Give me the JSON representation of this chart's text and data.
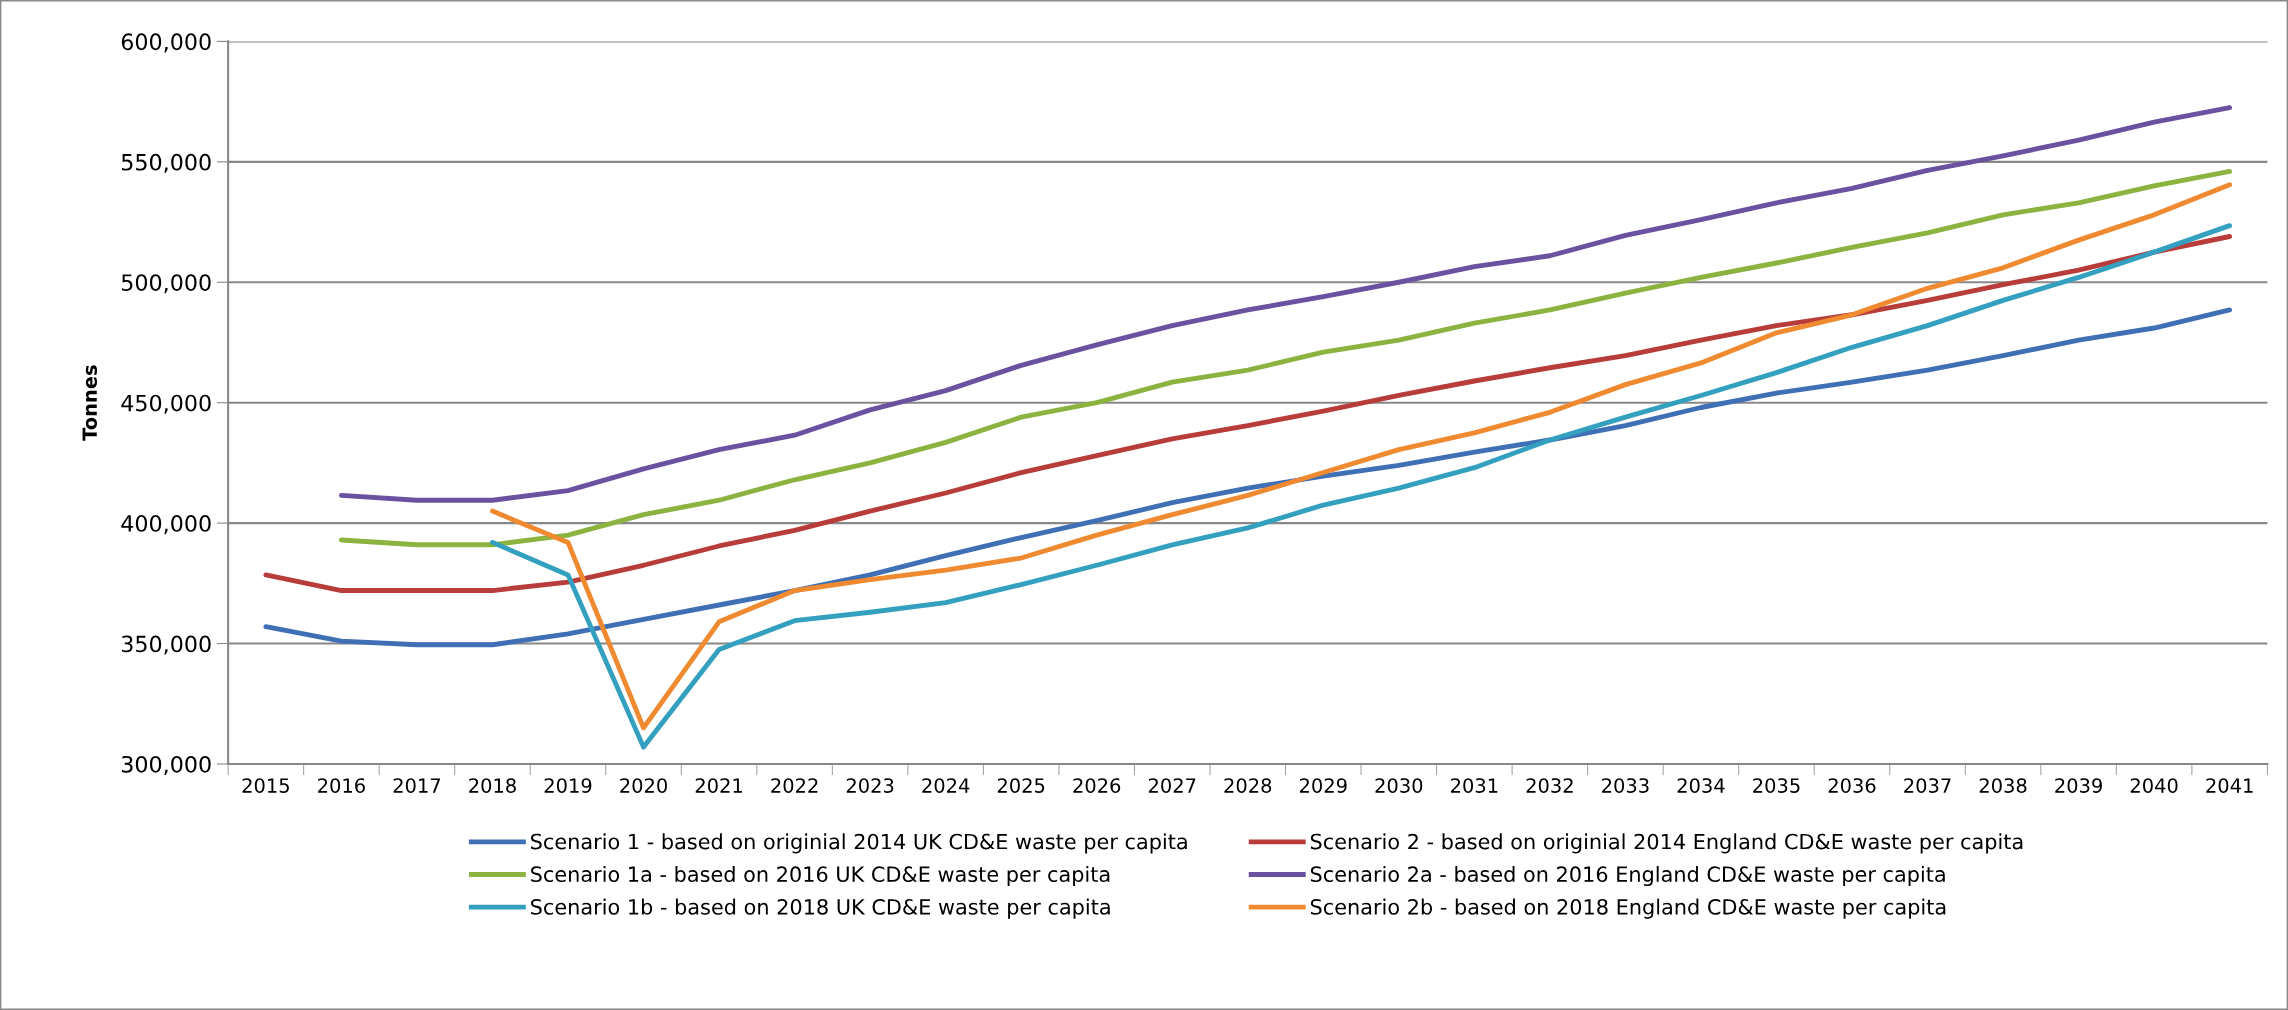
{
  "chart_data": {
    "type": "line",
    "ylabel": "Tonnes",
    "categories": [
      "2015",
      "2016",
      "2017",
      "2018",
      "2019",
      "2020",
      "2021",
      "2022",
      "2023",
      "2024",
      "2025",
      "2026",
      "2027",
      "2028",
      "2029",
      "2030",
      "2031",
      "2032",
      "2033",
      "2034",
      "2035",
      "2036",
      "2037",
      "2038",
      "2039",
      "2040",
      "2041"
    ],
    "series": [
      {
        "name": "Scenario 1 - based on originial 2014 UK CD&E waste per capita",
        "color": "#3f6fb5",
        "values": [
          357000,
          351000,
          349500,
          349500,
          354000,
          360000,
          366000,
          372000,
          378500,
          386500,
          394000,
          401000,
          408500,
          414500,
          419500,
          424000,
          429500,
          434500,
          440500,
          448000,
          454000,
          458500,
          463500,
          469500,
          476000,
          481000,
          488500
        ]
      },
      {
        "name": "Scenario 2 - based on originial 2014 England CD&E waste per capita",
        "color": "#b83c3a",
        "values": [
          378500,
          372000,
          372000,
          372000,
          375500,
          382500,
          390500,
          397000,
          405000,
          412500,
          421000,
          428000,
          435000,
          440500,
          446500,
          453000,
          459000,
          464500,
          469500,
          476000,
          482000,
          486500,
          492500,
          499000,
          505000,
          512500,
          519000
        ]
      },
      {
        "name": "Scenario 1a - based on 2016 UK CD&E waste per capita",
        "color": "#8cb240",
        "values": [
          null,
          393000,
          391000,
          391000,
          395000,
          403500,
          409500,
          418000,
          425000,
          433500,
          444000,
          450000,
          458500,
          463500,
          471000,
          476000,
          483000,
          488500,
          495500,
          502000,
          508000,
          514500,
          520500,
          528000,
          533000,
          540000,
          546000
        ]
      },
      {
        "name": "Scenario 2a - based on 2016 England CD&E waste per capita",
        "color": "#6a52a0",
        "values": [
          null,
          411500,
          409500,
          409500,
          413500,
          422500,
          430500,
          436500,
          447000,
          455000,
          465500,
          474000,
          482000,
          488500,
          494000,
          500000,
          506500,
          511000,
          519500,
          526000,
          533000,
          539000,
          546500,
          552500,
          559000,
          566500,
          572500
        ]
      },
      {
        "name": "Scenario 1b - based on 2018 UK CD&E waste per capita",
        "color": "#34a0bf",
        "values": [
          null,
          null,
          null,
          392000,
          378500,
          307000,
          347500,
          359500,
          363000,
          367000,
          374500,
          382500,
          391000,
          398000,
          407500,
          414500,
          423000,
          434500,
          444000,
          453000,
          462500,
          473000,
          482000,
          492500,
          502000,
          512500,
          523500
        ]
      },
      {
        "name": "Scenario 2b - based on 2018 England CD&E waste per capita",
        "color": "#f08a30",
        "values": [
          null,
          null,
          null,
          405000,
          392000,
          315000,
          359000,
          372000,
          376500,
          380500,
          385500,
          395000,
          403500,
          411500,
          421000,
          430500,
          437500,
          446000,
          457500,
          466500,
          479000,
          486500,
          497500,
          506000,
          517500,
          528000,
          540500
        ]
      }
    ],
    "ylim": [
      300000,
      600000
    ],
    "yticks": [
      {
        "value": 300000,
        "label": "300,000"
      },
      {
        "value": 350000,
        "label": "350,000"
      },
      {
        "value": 400000,
        "label": "400,000"
      },
      {
        "value": 450000,
        "label": "450,000"
      },
      {
        "value": 500000,
        "label": "500,000"
      },
      {
        "value": 550000,
        "label": "550,000"
      },
      {
        "value": 600000,
        "label": "600,000"
      }
    ],
    "grid": "y",
    "legend": "bottom",
    "marker": "none",
    "line_style": "solid"
  }
}
